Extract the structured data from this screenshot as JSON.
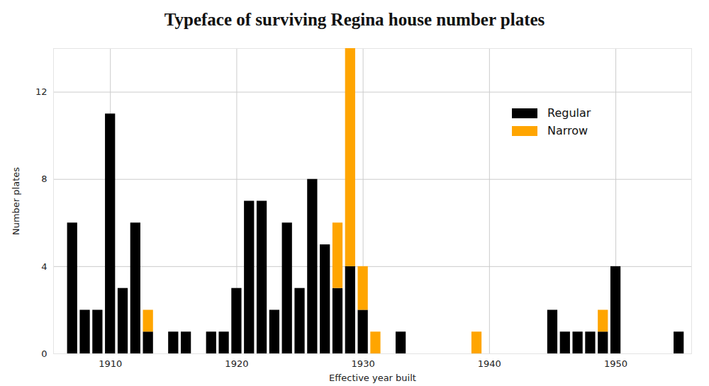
{
  "chart_data": {
    "type": "bar",
    "title": "Typeface of surviving Regina house number plates",
    "x_label": "Effective year built",
    "y_label": "Number plates",
    "x": [
      1907,
      1908,
      1909,
      1910,
      1911,
      1912,
      1913,
      1915,
      1916,
      1918,
      1919,
      1920,
      1921,
      1922,
      1923,
      1924,
      1925,
      1926,
      1927,
      1928,
      1929,
      1930,
      1931,
      1933,
      1939,
      1945,
      1946,
      1947,
      1948,
      1949,
      1950,
      1955
    ],
    "series": [
      {
        "name": "Regular",
        "color": "#000000",
        "values": [
          6,
          2,
          2,
          11,
          3,
          6,
          1,
          1,
          1,
          1,
          1,
          3,
          7,
          7,
          2,
          6,
          3,
          8,
          5,
          3,
          4,
          2,
          0,
          1,
          0,
          2,
          1,
          1,
          1,
          1,
          4,
          1
        ]
      },
      {
        "name": "Narrow",
        "color": "#ffa500",
        "values": [
          0,
          0,
          0,
          0,
          0,
          0,
          1,
          0,
          0,
          0,
          0,
          0,
          0,
          0,
          0,
          0,
          0,
          0,
          0,
          3,
          10,
          2,
          1,
          0,
          1,
          0,
          0,
          0,
          0,
          1,
          0,
          0
        ]
      }
    ],
    "stacked": true,
    "xlim": [
      1905.5,
      1956
    ],
    "xticks": [
      1910,
      1920,
      1930,
      1940,
      1950
    ],
    "ylim": [
      0,
      14
    ],
    "yticks": [
      0,
      4,
      8,
      12
    ],
    "grid": true,
    "legend": "top-right"
  }
}
